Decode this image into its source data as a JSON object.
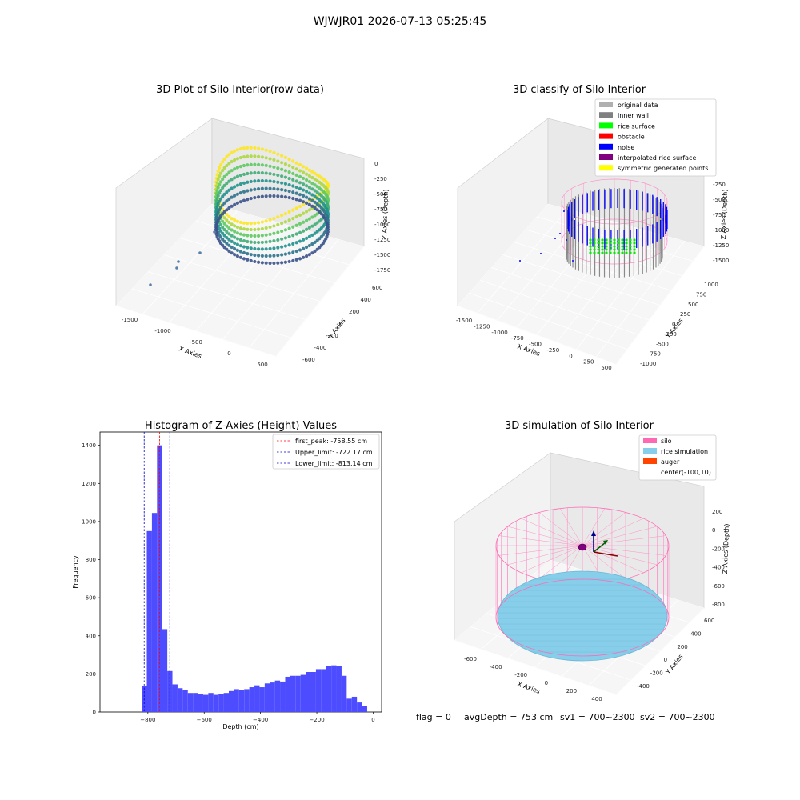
{
  "suptitle": "WJWJR01 2026-07-13 05:25:45",
  "status": {
    "flag": "flag = 0",
    "avg_depth": "avgDepth = 753 cm",
    "sv1": "sv1 = 700~2300",
    "sv2": "sv2 = 700~2300"
  },
  "colors": {
    "histogram": "#4d4dff",
    "first_peak": "#ff0000",
    "limits": "#0000cc",
    "silo": "#ff69b4",
    "rice": "#87ceeb",
    "auger": "#ff4500"
  },
  "chart_data": [
    {
      "type": "scatter3d",
      "title": "3D Plot of Silo Interior(row data)",
      "xlabel": "X Axies",
      "ylabel": "Y Axies",
      "zlabel": "Z Axies (Depth)",
      "xticks": [
        "-1500",
        "-1000",
        "-500",
        "0",
        "500"
      ],
      "yticks": [
        "-600",
        "-400",
        "-200",
        "0",
        "200",
        "400",
        "600"
      ],
      "zticks": [
        "0",
        "-250",
        "-500",
        "-750",
        "-1000",
        "-1250",
        "-1500",
        "-1750"
      ],
      "xlim": [
        -1650,
        550
      ],
      "ylim": [
        -650,
        650
      ],
      "zlim": [
        -1800,
        50
      ],
      "colormap": "viridis"
    },
    {
      "type": "scatter3d",
      "title": "3D classify of Silo Interior",
      "xticks": [
        "-1500",
        "-1250",
        "-1000",
        "-750",
        "-500",
        "-250",
        "0",
        "250",
        "500"
      ],
      "yticks": [
        "-1000",
        "-750",
        "-500",
        "-250",
        "0",
        "250",
        "500",
        "750",
        "1000"
      ],
      "zticks": [
        "0",
        "-250",
        "-500",
        "-750",
        "-1000",
        "-1250",
        "-1500"
      ],
      "xlabel": "X Axies",
      "ylabel": "Y Axies",
      "zlabel": "Z Axies (Depth)",
      "xlim": [
        -1600,
        550
      ],
      "ylim": [
        -1050,
        1050
      ],
      "zlim": [
        -1600,
        50
      ],
      "legend_position": "top-right",
      "legend": [
        {
          "label": "original data",
          "color": "#b0b0b0"
        },
        {
          "label": "inner wall",
          "color": "#808080"
        },
        {
          "label": "rice surface",
          "color": "#00ff00"
        },
        {
          "label": "obstacle",
          "color": "#ff0000"
        },
        {
          "label": "noise",
          "color": "#0000ff"
        },
        {
          "label": "interpolated rice surface",
          "color": "#800080"
        },
        {
          "label": "symmetric generated points",
          "color": "#ffff00"
        }
      ]
    },
    {
      "type": "bar",
      "title": "Histogram of Z-Axies (Height) Values",
      "xlabel": "Depth (cm)",
      "ylabel": "Frequency",
      "xlim": [
        -970,
        30
      ],
      "ylim": [
        0,
        1470
      ],
      "xticks": [
        -800,
        -600,
        -400,
        -200,
        0
      ],
      "yticks": [
        0,
        200,
        400,
        600,
        800,
        1000,
        1200,
        1400
      ],
      "bin_width": 18.2,
      "bin_start": -822,
      "values": [
        135,
        950,
        1045,
        1400,
        435,
        215,
        145,
        125,
        115,
        100,
        100,
        95,
        90,
        100,
        90,
        95,
        100,
        110,
        120,
        115,
        120,
        130,
        140,
        130,
        150,
        155,
        165,
        160,
        185,
        190,
        190,
        195,
        210,
        210,
        225,
        225,
        240,
        245,
        240,
        190,
        70,
        80,
        50,
        30
      ],
      "vlines": [
        {
          "x": -758.55,
          "label": "first_peak: -758.55 cm",
          "style": "red"
        },
        {
          "x": -722.17,
          "label": "Upper_limit: -722.17 cm",
          "style": "blue"
        },
        {
          "x": -813.14,
          "label": "Lower_limit: -813.14 cm",
          "style": "blue"
        }
      ],
      "legend_position": "top-right"
    },
    {
      "type": "surface3d",
      "title": "3D simulation of Silo Interior",
      "xlabel": "X Axies",
      "ylabel": "Y Axies",
      "zlabel": "Z Axies (Depth)",
      "xticks": [
        "-600",
        "-400",
        "-200",
        "0",
        "200",
        "400"
      ],
      "yticks": [
        "-400",
        "-200",
        "0",
        "200",
        "400",
        "600"
      ],
      "zticks": [
        "200",
        "0",
        "-200",
        "-400",
        "-600",
        "-800"
      ],
      "xlim": [
        -700,
        500
      ],
      "ylim": [
        -500,
        650
      ],
      "zlim": [
        -850,
        300
      ],
      "legend_position": "top-right",
      "legend": [
        {
          "label": "silo",
          "color": "#ff69b4"
        },
        {
          "label": "rice simulation",
          "color": "#87ceeb"
        },
        {
          "label": "auger",
          "color": "#ff4500"
        },
        {
          "label": "center(-100,10)",
          "color": ""
        }
      ]
    }
  ]
}
